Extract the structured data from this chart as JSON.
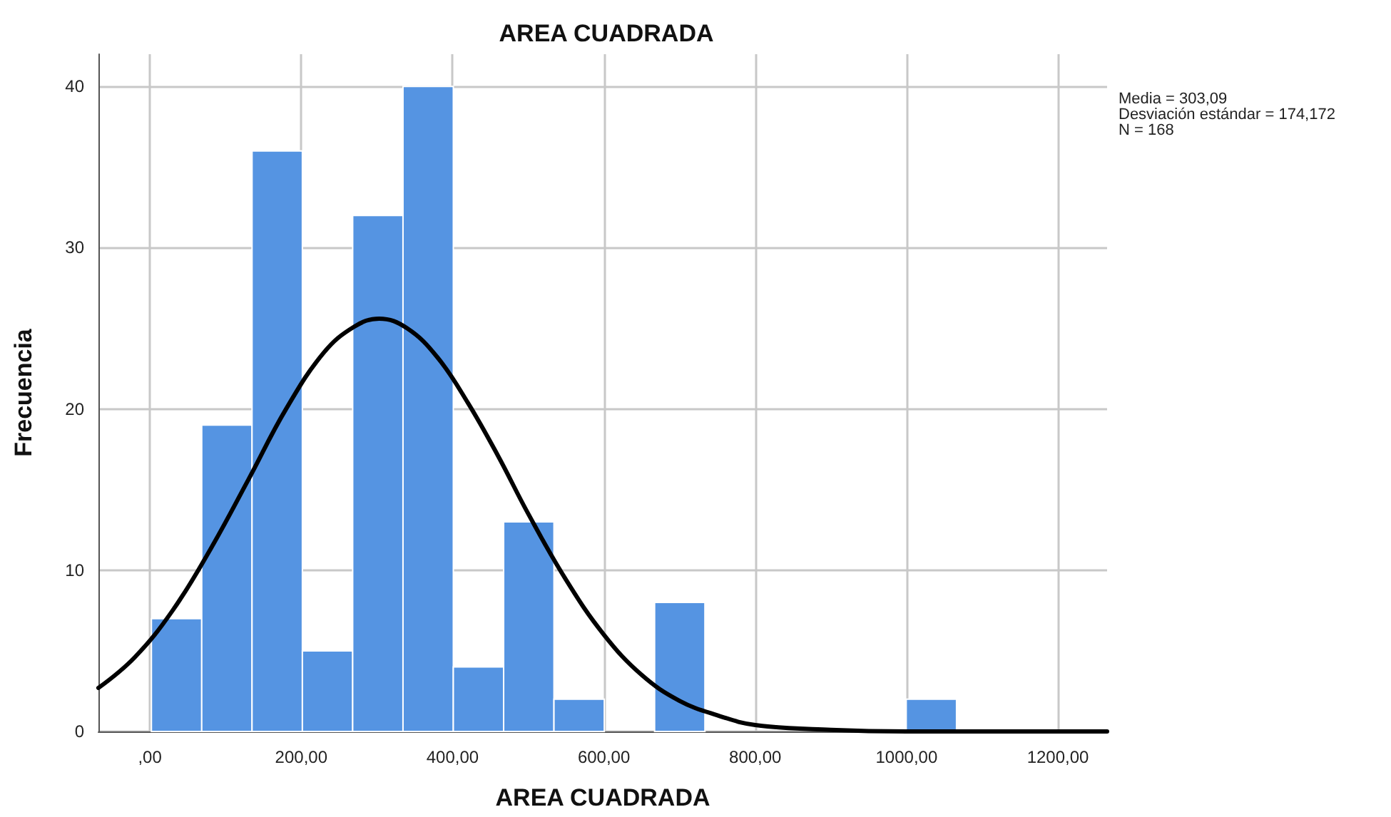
{
  "chart_data": {
    "type": "histogram",
    "title": "AREA CUADRADA",
    "xlabel": "AREA CUADRADA",
    "ylabel": "Frecuencia",
    "bins": [
      2,
      68.5,
      135,
      201.5,
      268,
      334.5,
      401,
      467.5,
      534,
      600.5,
      667,
      733.5,
      800,
      866.5,
      933,
      999.5,
      1066
    ],
    "values": [
      7,
      19,
      36,
      5,
      32,
      40,
      4,
      13,
      2,
      0,
      8,
      0,
      0,
      0,
      0,
      2
    ],
    "color": "#5594e2",
    "series": [
      {
        "type": "line",
        "color": "#000000",
        "line_style": "solid",
        "marker": "none",
        "x": [
          -68,
          -20,
          30,
          80,
          130,
          180,
          230,
          270,
          303,
          340,
          380,
          420,
          460,
          500,
          550,
          600,
          650,
          700,
          750,
          800,
          900,
          1000,
          1100,
          1265
        ],
        "values": [
          2.7,
          4.6,
          7.5,
          11.3,
          15.6,
          20.0,
          23.5,
          25.1,
          25.6,
          25.0,
          23.2,
          20.4,
          17.1,
          13.5,
          9.4,
          6.0,
          3.5,
          1.9,
          1.0,
          0.4,
          0.1,
          0.0,
          0.0,
          0.0
        ]
      }
    ],
    "xlim": [
      -68,
      1265
    ],
    "xticks": [
      {
        "value": 0,
        "label": ",00"
      },
      {
        "value": 200,
        "label": "200,00"
      },
      {
        "value": 400,
        "label": "400,00"
      },
      {
        "value": 600,
        "label": "600,00"
      },
      {
        "value": 800,
        "label": "800,00"
      },
      {
        "value": 1000,
        "label": "1000,00"
      },
      {
        "value": 1200,
        "label": "1200,00"
      }
    ],
    "ylim": [
      0,
      42
    ],
    "yticks": [
      0,
      10,
      20,
      30,
      40
    ],
    "grid": true,
    "annotations": [
      "Media = 303,09",
      "Desviación estándar = 174,172",
      "N = 168"
    ]
  }
}
